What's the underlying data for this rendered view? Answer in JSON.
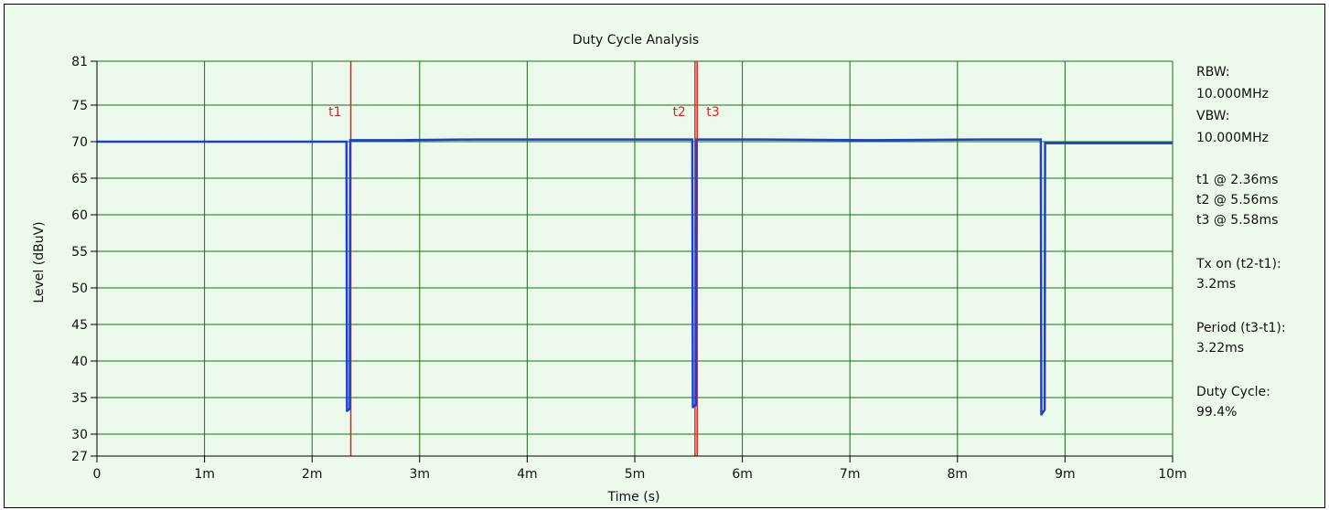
{
  "chart_data": {
    "type": "line",
    "title": "Duty Cycle Analysis",
    "xlabel": "Time (s)",
    "ylabel": "Level (dBuV)",
    "xlim": [
      0,
      0.01
    ],
    "ylim": [
      27,
      81
    ],
    "x_ticks": [
      {
        "value": 0,
        "label": "0"
      },
      {
        "value": 0.001,
        "label": "1m"
      },
      {
        "value": 0.002,
        "label": "2m"
      },
      {
        "value": 0.003,
        "label": "3m"
      },
      {
        "value": 0.004,
        "label": "4m"
      },
      {
        "value": 0.005,
        "label": "5m"
      },
      {
        "value": 0.006,
        "label": "6m"
      },
      {
        "value": 0.007,
        "label": "7m"
      },
      {
        "value": 0.008,
        "label": "8m"
      },
      {
        "value": 0.009,
        "label": "9m"
      },
      {
        "value": 0.01,
        "label": "10m"
      }
    ],
    "y_ticks": [
      {
        "value": 27,
        "label": "27"
      },
      {
        "value": 30,
        "label": "30"
      },
      {
        "value": 35,
        "label": "35"
      },
      {
        "value": 40,
        "label": "40"
      },
      {
        "value": 45,
        "label": "45"
      },
      {
        "value": 50,
        "label": "50"
      },
      {
        "value": 55,
        "label": "55"
      },
      {
        "value": 60,
        "label": "60"
      },
      {
        "value": 65,
        "label": "65"
      },
      {
        "value": 70,
        "label": "70"
      },
      {
        "value": 75,
        "label": "75"
      },
      {
        "value": 81,
        "label": "81"
      }
    ],
    "grid": true,
    "series": [
      {
        "color": "#1f3fd0",
        "x": [
          0,
          0.0021,
          0.00232,
          0.002325,
          0.00233,
          0.00235,
          0.002355,
          0.00236,
          0.0028,
          0.0035,
          0.0045,
          0.0055,
          0.005535,
          0.00554,
          0.005545,
          0.00557,
          0.005575,
          0.00558,
          0.0062,
          0.0072,
          0.0082,
          0.008775,
          0.00878,
          0.008785,
          0.00881,
          0.008815,
          0.00882,
          0.0092,
          0.01
        ],
        "y": [
          70.0,
          70.0,
          70.0,
          33.2,
          33.2,
          33.5,
          70.2,
          70.2,
          70.2,
          70.3,
          70.3,
          70.3,
          70.3,
          33.6,
          33.8,
          34.0,
          70.3,
          70.3,
          70.3,
          70.2,
          70.3,
          70.3,
          32.6,
          32.8,
          33.3,
          69.8,
          69.8,
          69.8,
          69.8
        ]
      }
    ],
    "markers": [
      {
        "label": "t1",
        "x": 0.00236,
        "color": "#e82020"
      },
      {
        "label": "t2",
        "x": 0.00556,
        "color": "#e82020"
      },
      {
        "label": "t3",
        "x": 0.00558,
        "color": "#e82020"
      }
    ]
  },
  "side_panel": {
    "rbw_label": "RBW:",
    "rbw_value": "10.000MHz",
    "vbw_label": "VBW:",
    "vbw_value": "10.000MHz",
    "t1": "t1 @ 2.36ms",
    "t2": "t2 @ 5.56ms",
    "t3": "t3 @ 5.58ms",
    "tx_on_label": "Tx on (t2-t1):",
    "tx_on_value": "3.2ms",
    "period_label": "Period (t3-t1):",
    "period_value": "3.22ms",
    "duty_label": "Duty Cycle:",
    "duty_value": "99.4%"
  },
  "colors": {
    "background": "#ecfaec",
    "grid": "#1e6b1e",
    "trace": "#1f3fd0",
    "marker": "#e82020"
  }
}
